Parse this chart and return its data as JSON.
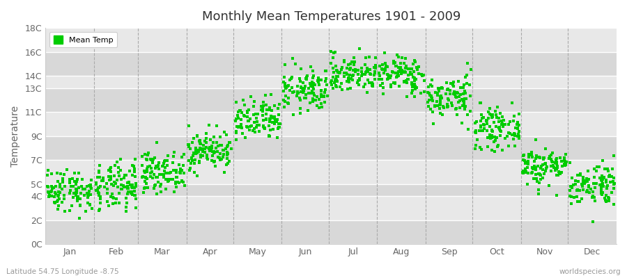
{
  "title": "Monthly Mean Temperatures 1901 - 2009",
  "ylabel": "Temperature",
  "subtitle_left": "Latitude 54.75 Longitude -8.75",
  "subtitle_right": "worldspecies.org",
  "legend_label": "Mean Temp",
  "dot_color": "#00cc00",
  "bg_color": "#ffffff",
  "plot_bg_color": "#e8e8e8",
  "stripe_color_dark": "#d8d8d8",
  "stripe_color_light": "#e8e8e8",
  "grid_color": "#ffffff",
  "dashed_line_color": "#aaaaaa",
  "ytick_labels": [
    "0C",
    "2C",
    "4C",
    "5C",
    "7C",
    "9C",
    "11C",
    "13C",
    "14C",
    "16C",
    "18C"
  ],
  "ytick_values": [
    0,
    2,
    4,
    5,
    7,
    9,
    11,
    13,
    14,
    16,
    18
  ],
  "months": [
    "Jan",
    "Feb",
    "Mar",
    "Apr",
    "May",
    "Jun",
    "Jul",
    "Aug",
    "Sep",
    "Oct",
    "Nov",
    "Dec"
  ],
  "monthly_means": [
    4.5,
    4.7,
    6.0,
    7.8,
    10.2,
    12.8,
    14.2,
    14.1,
    12.2,
    9.6,
    6.5,
    5.0
  ],
  "monthly_stds": [
    0.9,
    1.0,
    0.8,
    0.8,
    0.9,
    0.9,
    0.8,
    0.8,
    0.9,
    0.8,
    0.8,
    0.9
  ],
  "n_years": 109,
  "seed": 42,
  "ylim": [
    0,
    18
  ],
  "figsize": [
    9.0,
    4.0
  ],
  "dpi": 100
}
